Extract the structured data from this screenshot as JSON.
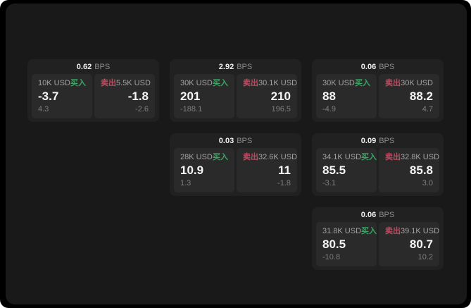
{
  "labels": {
    "bps_unit": "BPS",
    "buy": "买入",
    "sell": "卖出"
  },
  "colors": {
    "buy_green": "#3aa563",
    "sell_red": "#c04a60",
    "screen_background": "#000000",
    "window_background": "#191919",
    "card_background": "#212121",
    "panel_background": "#2a2a2a"
  },
  "cards": [
    {
      "bps": "0.62",
      "col": 1,
      "row": 1,
      "buy": {
        "notional": "10K USD",
        "price": "-3.7",
        "change": "4.3"
      },
      "sell": {
        "notional": "5.5K USD",
        "price": "-1.8",
        "change": "-2.6"
      }
    },
    {
      "bps": "2.92",
      "col": 2,
      "row": 1,
      "buy": {
        "notional": "30K USD",
        "price": "201",
        "change": "-188.1"
      },
      "sell": {
        "notional": "30.1K USD",
        "price": "210",
        "change": "196.5"
      }
    },
    {
      "bps": "0.06",
      "col": 3,
      "row": 1,
      "buy": {
        "notional": "30K USD",
        "price": "88",
        "change": "-4.9"
      },
      "sell": {
        "notional": "30K USD",
        "price": "88.2",
        "change": "4.7"
      }
    },
    {
      "bps": "0.03",
      "col": 2,
      "row": 2,
      "buy": {
        "notional": "28K USD",
        "price": "10.9",
        "change": "1.3"
      },
      "sell": {
        "notional": "32.6K USD",
        "price": "11",
        "change": "-1.8"
      }
    },
    {
      "bps": "0.09",
      "col": 3,
      "row": 2,
      "buy": {
        "notional": "34.1K USD",
        "price": "85.5",
        "change": "-3.1"
      },
      "sell": {
        "notional": "32.8K USD",
        "price": "85.8",
        "change": "3.0"
      }
    },
    {
      "bps": "0.06",
      "col": 3,
      "row": 3,
      "buy": {
        "notional": "31.8K USD",
        "price": "80.5",
        "change": "-10.8"
      },
      "sell": {
        "notional": "39.1K USD",
        "price": "80.7",
        "change": "10.2"
      }
    }
  ]
}
